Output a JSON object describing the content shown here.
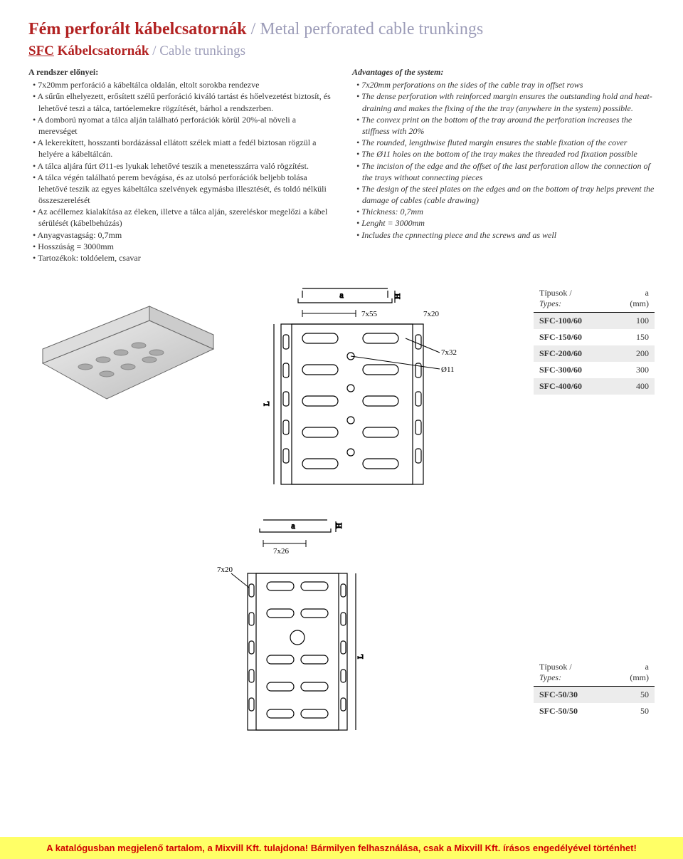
{
  "title_hu": "Fém perforált kábelcsatornák",
  "title_en": "Metal perforated cable trunkings",
  "subtitle_code": "SFC",
  "subtitle_hu": "Kábelcsatornák",
  "subtitle_en": "Cable trunkings",
  "left_head": "A rendszer előnyei:",
  "left_items": [
    "7x20mm perforáció a kábeltálca oldalán, eltolt sorokba rendezve",
    "A sűrűn elhelyezett, erősített szélű perforáció kiváló tartást és hőelvezetést biztosít, és lehetővé teszi a tálca, tartóelemekre rögzítését, bárhol a rendszerben.",
    "A domború nyomat a tálca alján található perforációk körül 20%-al növeli a merevséget",
    "A lekerekített, hosszanti bordázással ellátott szélek miatt a fedél biztosan rögzül a helyére a kábeltálcán.",
    "A tálca aljára fúrt Ø11-es lyukak lehetővé teszik a menetesszárra való rögzítést.",
    "A tálca végén található perem bevágása, és az utolsó perforációk beljebb tolása lehetővé teszik az egyes kábeltálca szelvények egymásba illesztését, és toldó nélküli összeszerelését",
    "Az acéllemez kialakítása az éleken, illetve a tálca alján, szereléskor megelőzi a kábel sérülését (kábelbehúzás)",
    "Anyagvastagság: 0,7mm",
    "Hosszúság = 3000mm",
    "Tartozékok: toldóelem, csavar"
  ],
  "right_head": "Advantages of the system:",
  "right_items": [
    "7x20mm perforations on the sides of the cable tray in offset rows",
    "The dense perforation with reinforced margin ensures the outstanding hold and heat-draining and makes the fixing of the the tray (anywhere in the system) possible.",
    "The convex print on the bottom of the tray around the perforation increases the stiffness with 20%",
    "The rounded, lengthwise fluted margin ensures the stable fixation of the cover",
    "The Ø11 holes on the bottom of the tray makes the threaded rod fixation possible",
    "The incision of the edge and the offset of the last perforation allow the connection of the trays without connecting pieces",
    "The design of the steel plates on the edges and on the bottom of tray helps prevent the damage of cables (cable drawing)",
    "Thickness: 0,7mm",
    "Lenght = 3000mm",
    "Includes the cpnnecting piece and the screws and as well"
  ],
  "table1_head_type_hu": "Típusok /",
  "table1_head_type_en": "Types:",
  "table1_head_a": "a",
  "table1_head_mm": "(mm)",
  "table1_rows": [
    {
      "code": "SFC-100/60",
      "a": "100"
    },
    {
      "code": "SFC-150/60",
      "a": "150"
    },
    {
      "code": "SFC-200/60",
      "a": "200"
    },
    {
      "code": "SFC-300/60",
      "a": "300"
    },
    {
      "code": "SFC-400/60",
      "a": "400"
    }
  ],
  "table2_rows": [
    {
      "code": "SFC-50/30",
      "a": "50"
    },
    {
      "code": "SFC-50/50",
      "a": "50"
    }
  ],
  "dim_7x55": "7x55",
  "dim_7x20": "7x20",
  "dim_7x32": "7x32",
  "dim_o11": "Ø11",
  "dim_7x26": "7x26",
  "dim_a": "a",
  "dim_H": "H",
  "dim_L": "L",
  "footer": "A katalógusban megjelenő tartalom, a Mixvill Kft. tulajdona! Bármilyen felhasználása, csak a Mixvill Kft. írásos engedélyével történhet!"
}
